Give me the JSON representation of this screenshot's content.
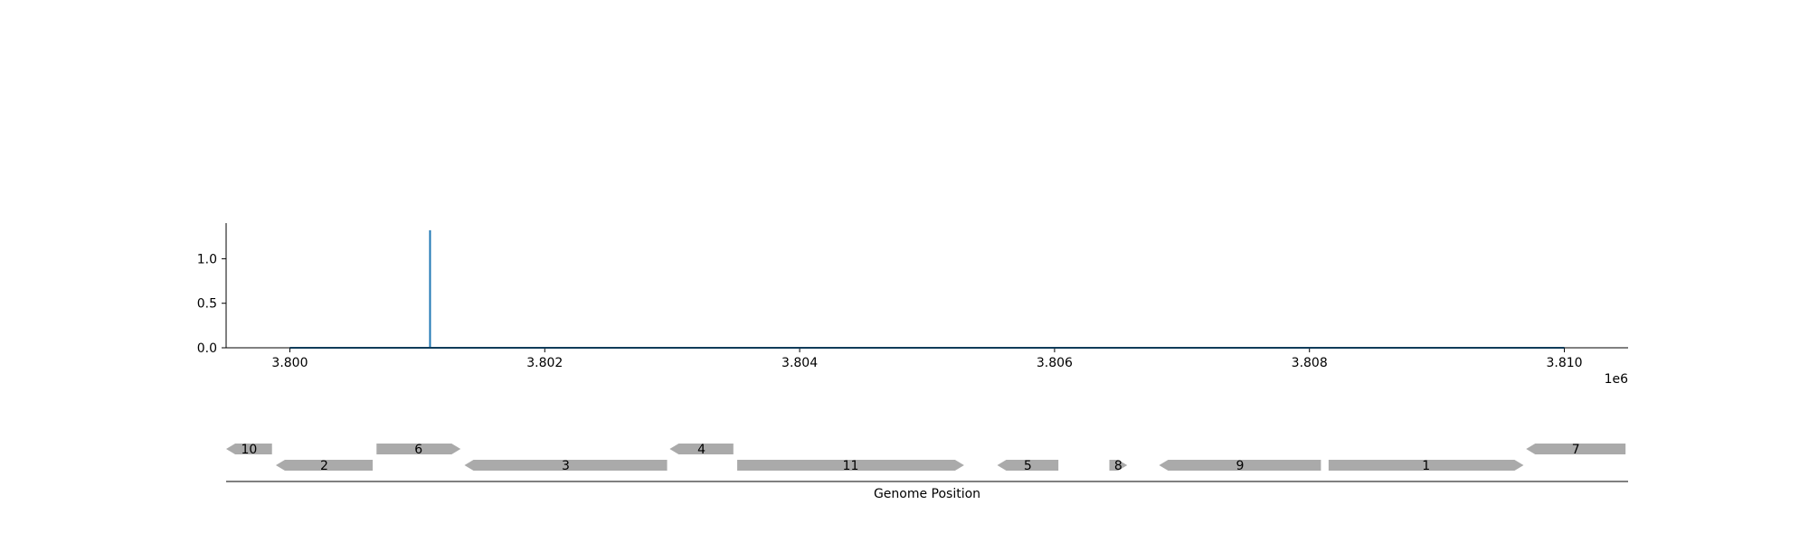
{
  "chart_data": [
    {
      "type": "line",
      "title": "",
      "xlabel": "",
      "ylabel": "",
      "x_offset_label": "1e6",
      "xlim": [
        3799500,
        3810500
      ],
      "ylim": [
        0,
        1.4
      ],
      "x_ticks": [
        3800000,
        3802000,
        3804000,
        3806000,
        3808000,
        3810000
      ],
      "x_tick_labels": [
        "3.800",
        "3.802",
        "3.804",
        "3.806",
        "3.808",
        "3.810"
      ],
      "y_ticks": [
        0,
        0.5,
        1.0
      ],
      "y_tick_labels": [
        "0.0",
        "0.5",
        "1.0"
      ],
      "grid": false,
      "series": [
        {
          "color": "#1f77b4",
          "x": [
            3800000,
            3801100,
            3801100,
            3801100,
            3810000
          ],
          "y": [
            0,
            0,
            1.32,
            0,
            0
          ]
        }
      ]
    },
    {
      "type": "gene_track",
      "xlabel": "Genome Position",
      "xlim": [
        3799500,
        3810500
      ],
      "feature_color": "#aaaaaa",
      "genes": [
        {
          "label": "10",
          "start": 3799500,
          "end": 3799860,
          "strand": -1,
          "row": 1
        },
        {
          "label": "2",
          "start": 3799890,
          "end": 3800650,
          "strand": -1,
          "row": 0
        },
        {
          "label": "6",
          "start": 3800680,
          "end": 3801340,
          "strand": 1,
          "row": 1
        },
        {
          "label": "3",
          "start": 3801370,
          "end": 3802960,
          "strand": -1,
          "row": 0
        },
        {
          "label": "4",
          "start": 3802980,
          "end": 3803480,
          "strand": -1,
          "row": 1
        },
        {
          "label": "11",
          "start": 3803510,
          "end": 3805290,
          "strand": 1,
          "row": 0
        },
        {
          "label": "5",
          "start": 3805550,
          "end": 3806030,
          "strand": -1,
          "row": 0
        },
        {
          "label": "8",
          "start": 3806430,
          "end": 3806570,
          "strand": 1,
          "row": 0
        },
        {
          "label": "9",
          "start": 3806820,
          "end": 3808090,
          "strand": -1,
          "row": 0
        },
        {
          "label": "1",
          "start": 3808150,
          "end": 3809680,
          "strand": 1,
          "row": 0
        },
        {
          "label": "7",
          "start": 3809700,
          "end": 3810480,
          "strand": -1,
          "row": 1
        }
      ]
    }
  ]
}
